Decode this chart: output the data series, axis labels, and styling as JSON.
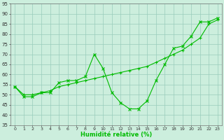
{
  "xlabel": "Humidité relative (%)",
  "bg_color": "#cceedd",
  "grid_color": "#99ccbb",
  "line_color": "#00bb00",
  "xlim": [
    -0.5,
    23.5
  ],
  "ylim": [
    35,
    95
  ],
  "xticks": [
    0,
    1,
    2,
    3,
    4,
    5,
    6,
    7,
    8,
    9,
    10,
    11,
    12,
    13,
    14,
    15,
    16,
    17,
    18,
    19,
    20,
    21,
    22,
    23
  ],
  "yticks": [
    35,
    40,
    45,
    50,
    55,
    60,
    65,
    70,
    75,
    80,
    85,
    90,
    95
  ],
  "line1_x": [
    0,
    1,
    2,
    3,
    4,
    5,
    6,
    7,
    8,
    9,
    10,
    11,
    12,
    13,
    14,
    15,
    16,
    17,
    18,
    19,
    20,
    21,
    22,
    23
  ],
  "line1_y": [
    54,
    49,
    49,
    51,
    51,
    56,
    57,
    57,
    59,
    70,
    63,
    51,
    46,
    43,
    43,
    47,
    57,
    65,
    73,
    74,
    79,
    86,
    86,
    88
  ],
  "line2_x": [
    0,
    1,
    2,
    3,
    4,
    5,
    6,
    7,
    8,
    9,
    10,
    11,
    12,
    13,
    14,
    15,
    16,
    17,
    18,
    19,
    20,
    21,
    22,
    23
  ],
  "line2_y": [
    54,
    50,
    50,
    51,
    52,
    54,
    55,
    56,
    57,
    58,
    59,
    60,
    61,
    62,
    63,
    64,
    66,
    68,
    70,
    72,
    75,
    78,
    85,
    87
  ]
}
